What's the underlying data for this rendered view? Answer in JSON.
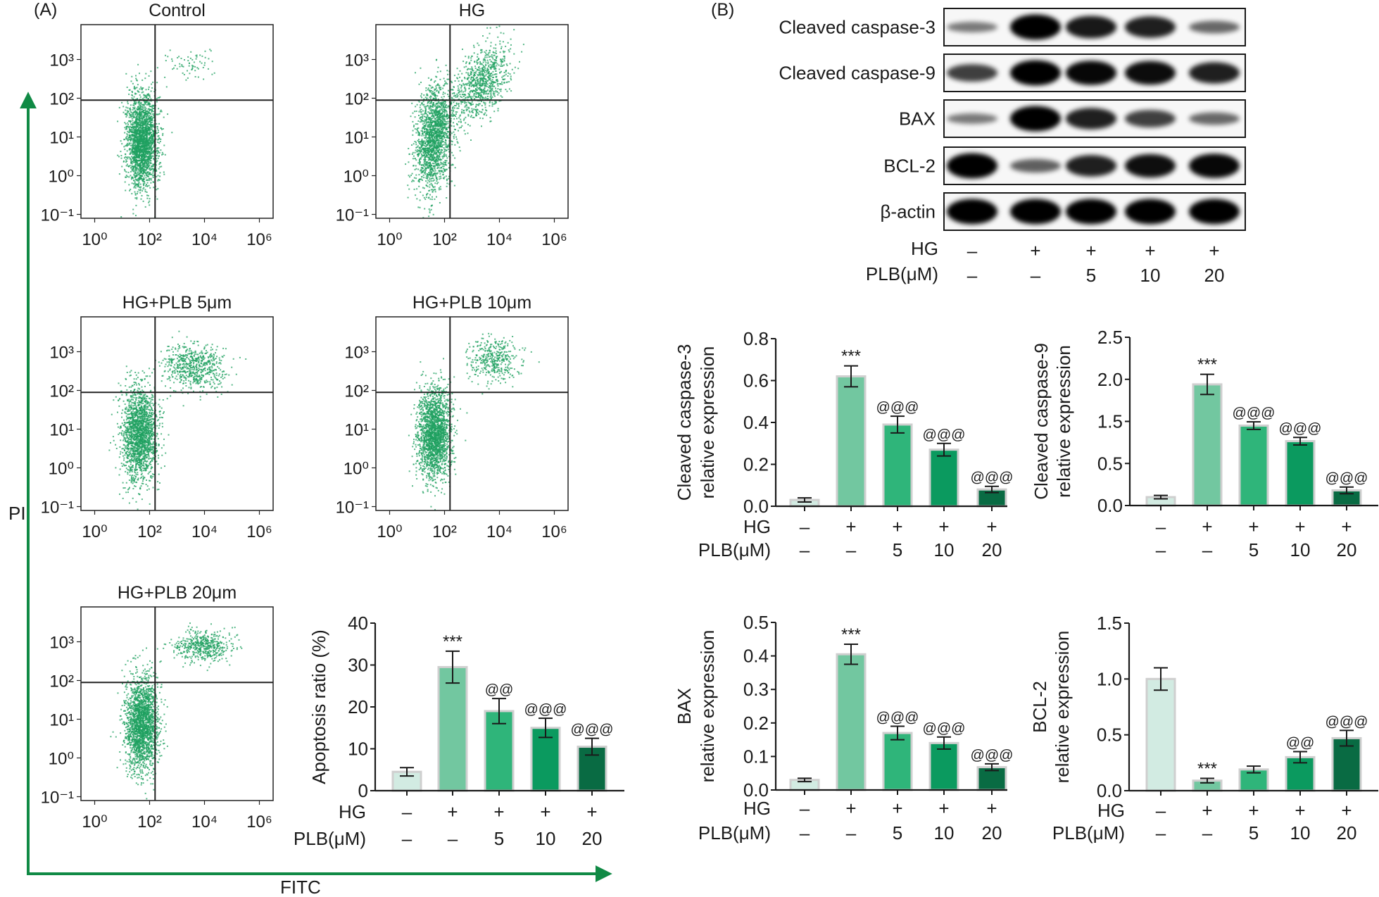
{
  "panels": {
    "a_label": "(A)",
    "b_label": "(B)"
  },
  "flow_axes": {
    "y_label": "PI",
    "x_label": "FITC",
    "arrow_color": "#108a45"
  },
  "colors": {
    "point": "#1fa060",
    "bars": [
      "#d2ebe2",
      "#72c7a0",
      "#2fb57a",
      "#0b9a5f",
      "#096b43"
    ],
    "bar_border": "#cfcfcf"
  },
  "western_blot": {
    "rows": [
      {
        "label": "Cleaved caspase-3",
        "band_intensity": [
          0.25,
          1.0,
          0.85,
          0.8,
          0.35
        ]
      },
      {
        "label": "Cleaved caspase-9",
        "band_intensity": [
          0.6,
          1.0,
          0.95,
          0.92,
          0.8
        ]
      },
      {
        "label": "BAX",
        "band_intensity": [
          0.25,
          1.0,
          0.8,
          0.6,
          0.35
        ]
      },
      {
        "label": "BCL-2",
        "band_intensity": [
          1.0,
          0.4,
          0.8,
          0.9,
          0.95
        ]
      },
      {
        "label": "β-actin",
        "band_intensity": [
          1.0,
          1.0,
          1.0,
          1.0,
          1.0
        ]
      }
    ],
    "hg_label": "HG",
    "hg": [
      "–",
      "+",
      "+",
      "+",
      "+"
    ],
    "plb_label": "PLB(μM)",
    "plb": [
      "–",
      "–",
      "5",
      "10",
      "20"
    ]
  },
  "chart_data": [
    {
      "type": "scatter",
      "title": "Control",
      "x_ticks": [
        "10⁰",
        "10²",
        "10⁴",
        "10⁶"
      ],
      "y_ticks": [
        "10³",
        "10²",
        "10¹",
        "10⁰",
        "10⁻¹"
      ]
    },
    {
      "type": "scatter",
      "title": "HG",
      "x_ticks": [
        "10⁰",
        "10²",
        "10⁴",
        "10⁶"
      ],
      "y_ticks": [
        "10³",
        "10²",
        "10¹",
        "10⁰",
        "10⁻¹"
      ]
    },
    {
      "type": "scatter",
      "title": "HG+PLB 5μm",
      "x_ticks": [
        "10⁰",
        "10²",
        "10⁴",
        "10⁶"
      ],
      "y_ticks": [
        "10³",
        "10²",
        "10¹",
        "10⁰",
        "10⁻¹"
      ]
    },
    {
      "type": "scatter",
      "title": "HG+PLB 10μm",
      "x_ticks": [
        "10⁰",
        "10²",
        "10⁴",
        "10⁶"
      ],
      "y_ticks": [
        "10³",
        "10²",
        "10¹",
        "10⁰",
        "10⁻¹"
      ]
    },
    {
      "type": "scatter",
      "title": "HG+PLB 20μm",
      "x_ticks": [
        "10⁰",
        "10²",
        "10⁴",
        "10⁶"
      ],
      "y_ticks": [
        "10³",
        "10²",
        "10¹",
        "10⁰",
        "10⁻¹"
      ]
    },
    {
      "type": "bar",
      "ylabel": [
        "Apoptosis ratio (%)"
      ],
      "y_ticks": [
        0,
        10,
        20,
        30,
        40
      ],
      "y_tick_labels": [
        "0",
        "10",
        "20",
        "30",
        "40"
      ],
      "values": [
        4.5,
        29.5,
        19,
        15,
        10.5
      ],
      "errors": [
        1,
        3.8,
        3,
        2.3,
        2
      ],
      "annotations": [
        "",
        "***",
        "@@",
        "@@@",
        "@@@"
      ],
      "hg_label": "HG",
      "hg": [
        "–",
        "+",
        "+",
        "+",
        "+"
      ],
      "plb_label": "PLB(μM)",
      "plb": [
        "–",
        "–",
        "5",
        "10",
        "20"
      ]
    },
    {
      "type": "bar",
      "ylabel": [
        "Cleaved caspase-3",
        "relative expression"
      ],
      "y_ticks": [
        0,
        0.2,
        0.4,
        0.6,
        0.8
      ],
      "y_tick_labels": [
        "0.0",
        "0.2",
        "0.4",
        "0.6",
        "0.8"
      ],
      "values": [
        0.03,
        0.62,
        0.39,
        0.27,
        0.08
      ],
      "errors": [
        0.01,
        0.05,
        0.04,
        0.03,
        0.015
      ],
      "annotations": [
        "",
        "***",
        "@@@",
        "@@@",
        "@@@"
      ],
      "hg_label": "HG",
      "hg": [
        "–",
        "+",
        "+",
        "+",
        "+"
      ],
      "plb_label": "PLB(μM)",
      "plb": [
        "–",
        "–",
        "5",
        "10",
        "20"
      ]
    },
    {
      "type": "bar",
      "ylabel": [
        "Cleaved caspase-9",
        "relative expression"
      ],
      "y_ticks": [
        0,
        0.5,
        1.5,
        2.0,
        2.5
      ],
      "y_tick_labels": [
        "0.0",
        "0.5",
        "1.5",
        "2.0",
        "2.5"
      ],
      "values": [
        0.1,
        1.94,
        1.4,
        1.03,
        0.18
      ],
      "errors": [
        0.02,
        0.12,
        0.09,
        0.09,
        0.04
      ],
      "annotations": [
        "",
        "***",
        "@@@",
        "@@@",
        "@@@"
      ],
      "hg_label": "",
      "hg": [
        "–",
        "+",
        "+",
        "+",
        "+"
      ],
      "plb_label": "",
      "plb": [
        "–",
        "–",
        "5",
        "10",
        "20"
      ]
    },
    {
      "type": "bar",
      "ylabel": [
        "BAX",
        "relative expression"
      ],
      "y_ticks": [
        0,
        0.1,
        0.2,
        0.3,
        0.4,
        0.5
      ],
      "y_tick_labels": [
        "0.0",
        "0.1",
        "0.2",
        "0.3",
        "0.4",
        "0.5"
      ],
      "values": [
        0.03,
        0.405,
        0.17,
        0.14,
        0.068
      ],
      "errors": [
        0.005,
        0.03,
        0.02,
        0.018,
        0.01
      ],
      "annotations": [
        "",
        "***",
        "@@@",
        "@@@",
        "@@@"
      ],
      "hg_label": "HG",
      "hg": [
        "–",
        "+",
        "+",
        "+",
        "+"
      ],
      "plb_label": "PLB(μM)",
      "plb": [
        "–",
        "–",
        "5",
        "10",
        "20"
      ]
    },
    {
      "type": "bar",
      "ylabel": [
        "BCL-2",
        "relative expression"
      ],
      "y_ticks": [
        0,
        0.5,
        1.0,
        1.5
      ],
      "y_tick_labels": [
        "0.0",
        "0.5",
        "1.0",
        "1.5"
      ],
      "values": [
        1.0,
        0.09,
        0.19,
        0.3,
        0.47
      ],
      "errors": [
        0.1,
        0.02,
        0.03,
        0.05,
        0.07
      ],
      "annotations": [
        "",
        "***",
        "",
        "@@",
        "@@@"
      ],
      "hg_label": "HG",
      "hg": [
        "–",
        "+",
        "+",
        "+",
        "+"
      ],
      "plb_label": "PLB(μM)",
      "plb": [
        "–",
        "–",
        "5",
        "10",
        "20"
      ]
    }
  ]
}
